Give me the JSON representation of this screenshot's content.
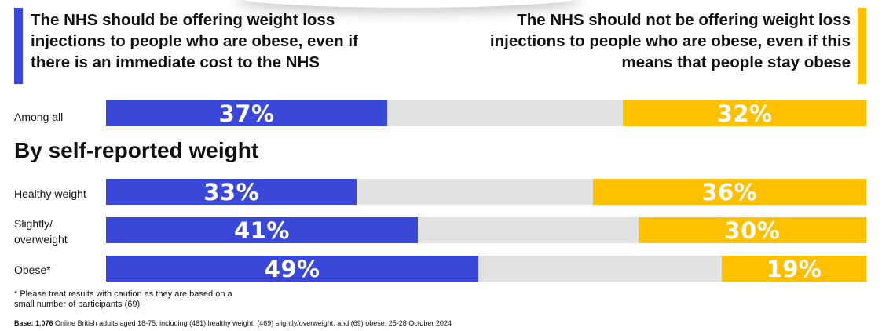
{
  "header": {
    "left_statement": "The NHS should be offering weight loss injections to people who are obese, even if there is an immediate cost to the NHS",
    "right_statement": "The NHS should not be offering weight loss injections to people who are obese, even if this means that people stay obese"
  },
  "section_heading": "By self-reported weight",
  "colors": {
    "offer": "#3a48d9",
    "not_offer": "#ffc000",
    "neither": "#e2e2e2"
  },
  "chart_data": {
    "type": "bar",
    "orientation": "horizontal-stacked",
    "categories": [
      "Among all",
      "Healthy weight",
      "Slightly/ overweight",
      "Obese*"
    ],
    "series": [
      {
        "values": [
          37,
          33,
          41,
          49
        ]
      },
      {
        "values": [
          32,
          36,
          30,
          19
        ]
      }
    ],
    "value_labels": [
      [
        "37%",
        "32%"
      ],
      [
        "33%",
        "36%"
      ],
      [
        "41%",
        "30%"
      ],
      [
        "49%",
        "19%"
      ]
    ],
    "xlim": [
      0,
      100
    ]
  },
  "footnote": "* Please treat results with caution as they are based on a small number of participants (69)",
  "base": {
    "label": "Base: 1,076",
    "text": " Online British adults aged 18-75, including (481) healthy weight, (469) slightly/overweight, and (69) obese, 25-28 October 2024"
  }
}
